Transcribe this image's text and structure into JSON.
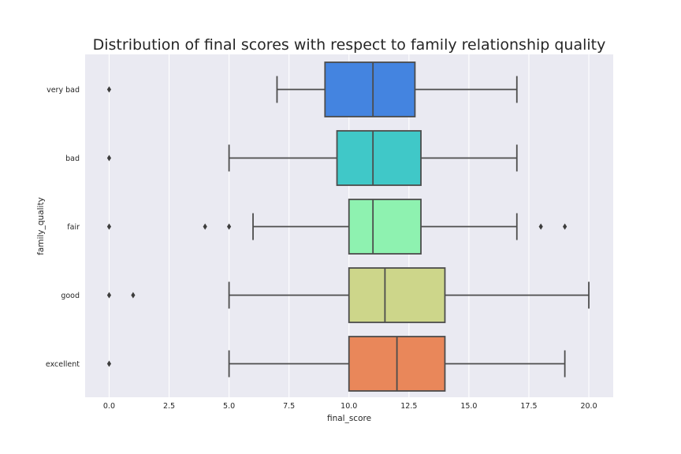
{
  "chart_data": {
    "type": "box",
    "orientation": "horizontal",
    "title": "Distribution of final scores with respect to family relationship quality",
    "xlabel": "final_score",
    "ylabel": "family_quality",
    "xlim": [
      -1.0,
      21.0
    ],
    "xticks": [
      0.0,
      2.5,
      5.0,
      7.5,
      10.0,
      12.5,
      15.0,
      17.5,
      20.0
    ],
    "xtick_labels": [
      "0.0",
      "2.5",
      "5.0",
      "7.5",
      "10.0",
      "12.5",
      "15.0",
      "17.5",
      "20.0"
    ],
    "grid": true,
    "categories": [
      "very bad",
      "bad",
      "fair",
      "good",
      "excellent"
    ],
    "colors": [
      "#4484e0",
      "#40c8c8",
      "#8ef2b0",
      "#cdd68a",
      "#e9875a"
    ],
    "boxes": [
      {
        "category": "very bad",
        "whisker_low": 7,
        "q1": 9,
        "median": 11,
        "q3": 12.75,
        "whisker_high": 17,
        "outliers": [
          0
        ]
      },
      {
        "category": "bad",
        "whisker_low": 5,
        "q1": 9.5,
        "median": 11,
        "q3": 13,
        "whisker_high": 17,
        "outliers": [
          0
        ]
      },
      {
        "category": "fair",
        "whisker_low": 6,
        "q1": 10,
        "median": 11,
        "q3": 13,
        "whisker_high": 17,
        "outliers": [
          0,
          4,
          5,
          18,
          19
        ]
      },
      {
        "category": "good",
        "whisker_low": 5,
        "q1": 10,
        "median": 11.5,
        "q3": 14,
        "whisker_high": 20,
        "outliers": [
          0,
          1
        ]
      },
      {
        "category": "excellent",
        "whisker_low": 5,
        "q1": 10,
        "median": 12,
        "q3": 14,
        "whisker_high": 19,
        "outliers": [
          0
        ]
      }
    ]
  }
}
